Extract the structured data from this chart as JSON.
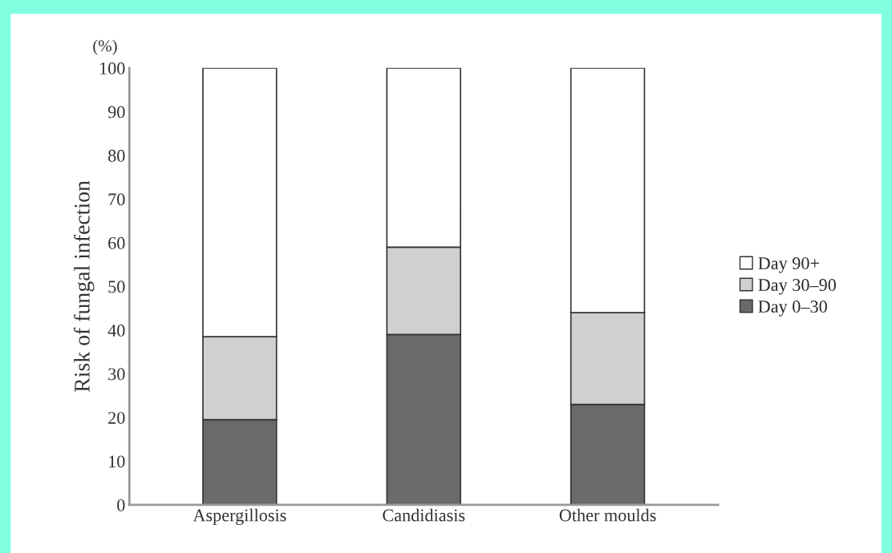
{
  "chart_data": {
    "type": "bar",
    "stacked": true,
    "ylabel": "Risk of fungal infection",
    "annotations": [
      "(%)"
    ],
    "categories": [
      "Aspergillosis",
      "Candidiasis",
      "Other moulds"
    ],
    "series": [
      {
        "name": "Day 0–30",
        "color": "#6a6a6a",
        "values": [
          19.5,
          39,
          23
        ]
      },
      {
        "name": "Day 30–90",
        "color": "#d0d0d0",
        "values": [
          19,
          20,
          21
        ]
      },
      {
        "name": "Day 90+",
        "color": "#ffffff",
        "values": [
          61.5,
          41,
          56
        ]
      }
    ],
    "ylim": [
      0,
      100
    ],
    "yticks": [
      0,
      10,
      20,
      30,
      40,
      50,
      60,
      70,
      80,
      90,
      100
    ],
    "grid": false,
    "legend": "right"
  }
}
